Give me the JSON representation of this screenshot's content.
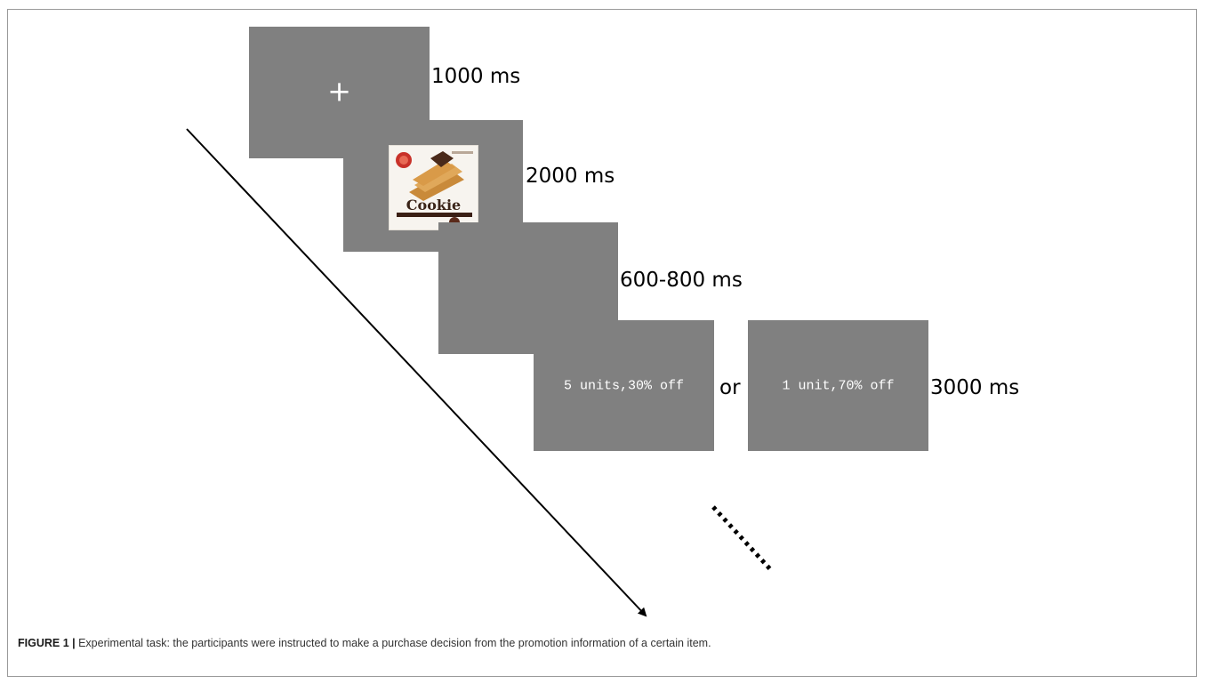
{
  "screens": [
    {
      "content": "+",
      "duration": "1000 ms"
    },
    {
      "content_image": "cookie-box-icon",
      "product_text": "Cookie",
      "duration": "2000 ms"
    },
    {
      "content": "",
      "duration": "600-800 ms"
    },
    {
      "option_a": "5 units,30% off",
      "connector": "or",
      "option_b": "1 unit,70% off",
      "duration": "3000 ms"
    }
  ],
  "caption": {
    "label": "FIGURE 1 |",
    "text": " Experimental task: the participants were instructed to make a purchase decision from the promotion information of a certain item."
  },
  "colors": {
    "screen": "#808080",
    "text_on_screen": "#ffffff",
    "arrow": "#000000"
  }
}
